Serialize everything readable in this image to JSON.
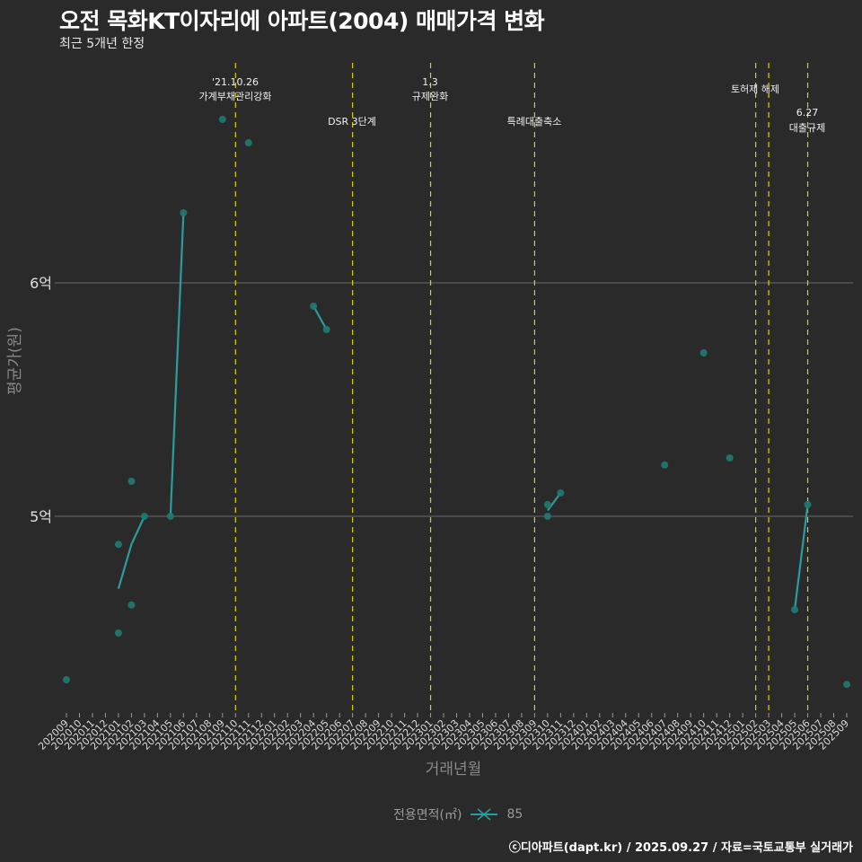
{
  "header": {
    "title": "오전 목화KT이자리에 아파트(2004) 매매가격 변화",
    "subtitle": "최근 5개년 한정"
  },
  "axes": {
    "y_title": "평균가(원)",
    "x_title": "거래년월",
    "y_ticks": [
      {
        "label": "6억",
        "value": 600000000
      },
      {
        "label": "5억",
        "value": 500000000
      }
    ]
  },
  "legend": {
    "title": "전용면적(㎡)",
    "items": [
      {
        "label": "85",
        "color": "#2a9d9a"
      }
    ]
  },
  "footer": {
    "credit": "ⓒ디아파트(dapt.kr) / 2025.09.27 / 자료=국토교통부 실거래가"
  },
  "colors": {
    "background": "#2b2a2b",
    "series": "#2a9d9a",
    "point": "#1f7a72",
    "event_line": "#d4d400",
    "grid": "#6a6a6a"
  },
  "chart_data": {
    "type": "line",
    "title": "오전 목화KT이자리에 아파트(2004) 매매가격 변화",
    "subtitle": "최근 5개년 한정",
    "xlabel": "거래년월",
    "ylabel": "평균가(원)",
    "ylim": [
      420000000,
      690000000
    ],
    "grid": "horizontal at 5억, 6억",
    "legend_position": "bottom",
    "categories": [
      "202009",
      "202010",
      "202011",
      "202012",
      "202101",
      "202102",
      "202103",
      "202104",
      "202105",
      "202106",
      "202107",
      "202108",
      "202109",
      "202110",
      "202111",
      "202112",
      "202201",
      "202202",
      "202203",
      "202204",
      "202205",
      "202206",
      "202207",
      "202208",
      "202209",
      "202210",
      "202211",
      "202212",
      "202301",
      "202302",
      "202303",
      "202304",
      "202305",
      "202306",
      "202307",
      "202308",
      "202309",
      "202310",
      "202311",
      "202312",
      "202401",
      "202402",
      "202403",
      "202404",
      "202405",
      "202406",
      "202407",
      "202408",
      "202409",
      "202410",
      "202411",
      "202412",
      "202501",
      "202502",
      "202503",
      "202504",
      "202505",
      "202506",
      "202507",
      "202508",
      "202509"
    ],
    "series": [
      {
        "name": "85",
        "points": [
          {
            "x": "202009",
            "y": 430000000
          },
          {
            "x": "202101",
            "y": 488000000
          },
          {
            "x": "202101",
            "y": 450000000
          },
          {
            "x": "202102",
            "y": 515000000
          },
          {
            "x": "202102",
            "y": 462000000
          },
          {
            "x": "202103",
            "y": 500000000
          },
          {
            "x": "202105",
            "y": 500000000
          },
          {
            "x": "202106",
            "y": 630000000
          },
          {
            "x": "202109",
            "y": 670000000
          },
          {
            "x": "202111",
            "y": 660000000
          },
          {
            "x": "202204",
            "y": 590000000
          },
          {
            "x": "202205",
            "y": 580000000
          },
          {
            "x": "202310",
            "y": 505000000
          },
          {
            "x": "202310",
            "y": 500000000
          },
          {
            "x": "202311",
            "y": 510000000
          },
          {
            "x": "202407",
            "y": 522000000
          },
          {
            "x": "202410",
            "y": 570000000
          },
          {
            "x": "202412",
            "y": 525000000
          },
          {
            "x": "202505",
            "y": 460000000
          },
          {
            "x": "202506",
            "y": 505000000
          },
          {
            "x": "202509",
            "y": 428000000
          }
        ],
        "mean_line_segments": [
          [
            {
              "x": "202101",
              "y": 469000000
            },
            {
              "x": "202102",
              "y": 488000000
            },
            {
              "x": "202103",
              "y": 500000000
            }
          ],
          [
            {
              "x": "202105",
              "y": 500000000
            },
            {
              "x": "202106",
              "y": 630000000
            }
          ],
          [
            {
              "x": "202204",
              "y": 590000000
            },
            {
              "x": "202205",
              "y": 580000000
            }
          ],
          [
            {
              "x": "202310",
              "y": 502500000
            },
            {
              "x": "202311",
              "y": 510000000
            }
          ],
          [
            {
              "x": "202505",
              "y": 460000000
            },
            {
              "x": "202506",
              "y": 505000000
            }
          ]
        ]
      }
    ],
    "annotations": [
      {
        "x": "202110",
        "label": "'21.10.26\n가계부채관리강화"
      },
      {
        "x": "202207",
        "label": "DSR 3단계"
      },
      {
        "x": "202301",
        "label": "1.3\n규제완화"
      },
      {
        "x": "202309",
        "label": "특례대출축소"
      },
      {
        "x": "202502",
        "label": "토허제 해제"
      },
      {
        "x": "202503",
        "label": ""
      },
      {
        "x": "202506",
        "label": "6.27\n대출규제"
      }
    ]
  }
}
